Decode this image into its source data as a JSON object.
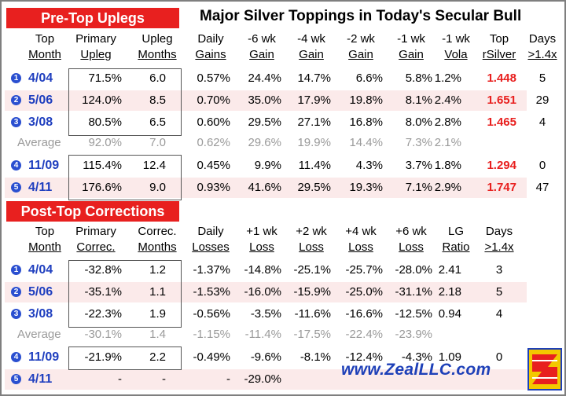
{
  "title": "Major Silver Toppings in Today's Secular Bull",
  "uplegs_label": "Pre-Top Uplegs",
  "corrections_label": "Post-Top Corrections",
  "top_headers": [
    {
      "line1": "Top",
      "line2": "Month"
    },
    {
      "line1": "Primary",
      "line2": "Upleg"
    },
    {
      "line1": "Upleg",
      "line2": "Months"
    },
    {
      "line1": "Daily",
      "line2": "Gains"
    },
    {
      "line1": "-6 wk",
      "line2": "Gain"
    },
    {
      "line1": "-4 wk",
      "line2": "Gain"
    },
    {
      "line1": "-2 wk",
      "line2": "Gain"
    },
    {
      "line1": "-1 wk",
      "line2": "Gain"
    },
    {
      "line1": "-1 wk",
      "line2": "Vola"
    },
    {
      "line1": "Top",
      "line2": "rSilver"
    },
    {
      "line1": "Days",
      "line2": ">1.4x"
    }
  ],
  "top_rows": [
    {
      "badge": "1",
      "month": "4/04",
      "cells": [
        "71.5%",
        "6.0",
        "0.57%",
        "24.4%",
        "14.7%",
        "6.6%",
        "5.8%",
        "1.2%",
        "1.448",
        "5"
      ]
    },
    {
      "badge": "2",
      "month": "5/06",
      "cells": [
        "124.0%",
        "8.5",
        "0.70%",
        "35.0%",
        "17.9%",
        "19.8%",
        "8.1%",
        "2.4%",
        "1.651",
        "29"
      ]
    },
    {
      "badge": "3",
      "month": "3/08",
      "cells": [
        "80.5%",
        "6.5",
        "0.60%",
        "29.5%",
        "27.1%",
        "16.8%",
        "8.0%",
        "2.8%",
        "1.465",
        "4"
      ]
    },
    {
      "badge": "",
      "month": "Average",
      "cells": [
        "92.0%",
        "7.0",
        "0.62%",
        "29.6%",
        "19.9%",
        "14.4%",
        "7.3%",
        "2.1%",
        "",
        ""
      ]
    },
    {
      "badge": "4",
      "month": "11/09",
      "cells": [
        "115.4%",
        "12.4",
        "0.45%",
        "9.9%",
        "11.4%",
        "4.3%",
        "3.7%",
        "1.8%",
        "1.294",
        "0"
      ]
    },
    {
      "badge": "5",
      "month": "4/11",
      "cells": [
        "176.6%",
        "9.0",
        "0.93%",
        "41.6%",
        "29.5%",
        "19.3%",
        "7.1%",
        "2.9%",
        "1.747",
        "47"
      ]
    }
  ],
  "bottom_headers": [
    {
      "line1": "Top",
      "line2": "Month"
    },
    {
      "line1": "Primary",
      "line2": "Correc."
    },
    {
      "line1": "Correc.",
      "line2": "Months"
    },
    {
      "line1": "Daily",
      "line2": "Losses"
    },
    {
      "line1": "+1 wk",
      "line2": "Loss"
    },
    {
      "line1": "+2 wk",
      "line2": "Loss"
    },
    {
      "line1": "+4 wk",
      "line2": "Loss"
    },
    {
      "line1": "+6 wk",
      "line2": "Loss"
    },
    {
      "line1": "LG",
      "line2": "Ratio"
    },
    {
      "line1": "Days",
      "line2": ">1.4x"
    }
  ],
  "bottom_rows": [
    {
      "badge": "1",
      "month": "4/04",
      "cells": [
        "-32.8%",
        "1.2",
        "-1.37%",
        "-14.8%",
        "-25.1%",
        "-25.7%",
        "-28.0%",
        "2.41",
        "3"
      ]
    },
    {
      "badge": "2",
      "month": "5/06",
      "cells": [
        "-35.1%",
        "1.1",
        "-1.53%",
        "-16.0%",
        "-15.9%",
        "-25.0%",
        "-31.1%",
        "2.18",
        "5"
      ]
    },
    {
      "badge": "3",
      "month": "3/08",
      "cells": [
        "-22.3%",
        "1.9",
        "-0.56%",
        "-3.5%",
        "-11.6%",
        "-16.6%",
        "-12.5%",
        "0.94",
        "4"
      ]
    },
    {
      "badge": "",
      "month": "Average",
      "cells": [
        "-30.1%",
        "1.4",
        "-1.15%",
        "-11.4%",
        "-17.5%",
        "-22.4%",
        "-23.9%",
        "",
        ""
      ]
    },
    {
      "badge": "4",
      "month": "11/09",
      "cells": [
        "-21.9%",
        "2.2",
        "-0.49%",
        "-9.6%",
        "-8.1%",
        "-12.4%",
        "-4.3%",
        "1.09",
        "0"
      ]
    },
    {
      "badge": "5",
      "month": "4/11",
      "cells": [
        "-",
        "-",
        "-",
        "-29.0%",
        "",
        "",
        "",
        "",
        ""
      ]
    }
  ],
  "website": "www.ZealLLC.com",
  "colors": {
    "accent_red": "#e8201f",
    "month_blue": "#1f3fbf",
    "stripe": "#fbeaea",
    "gray": "#9a9a9a"
  }
}
